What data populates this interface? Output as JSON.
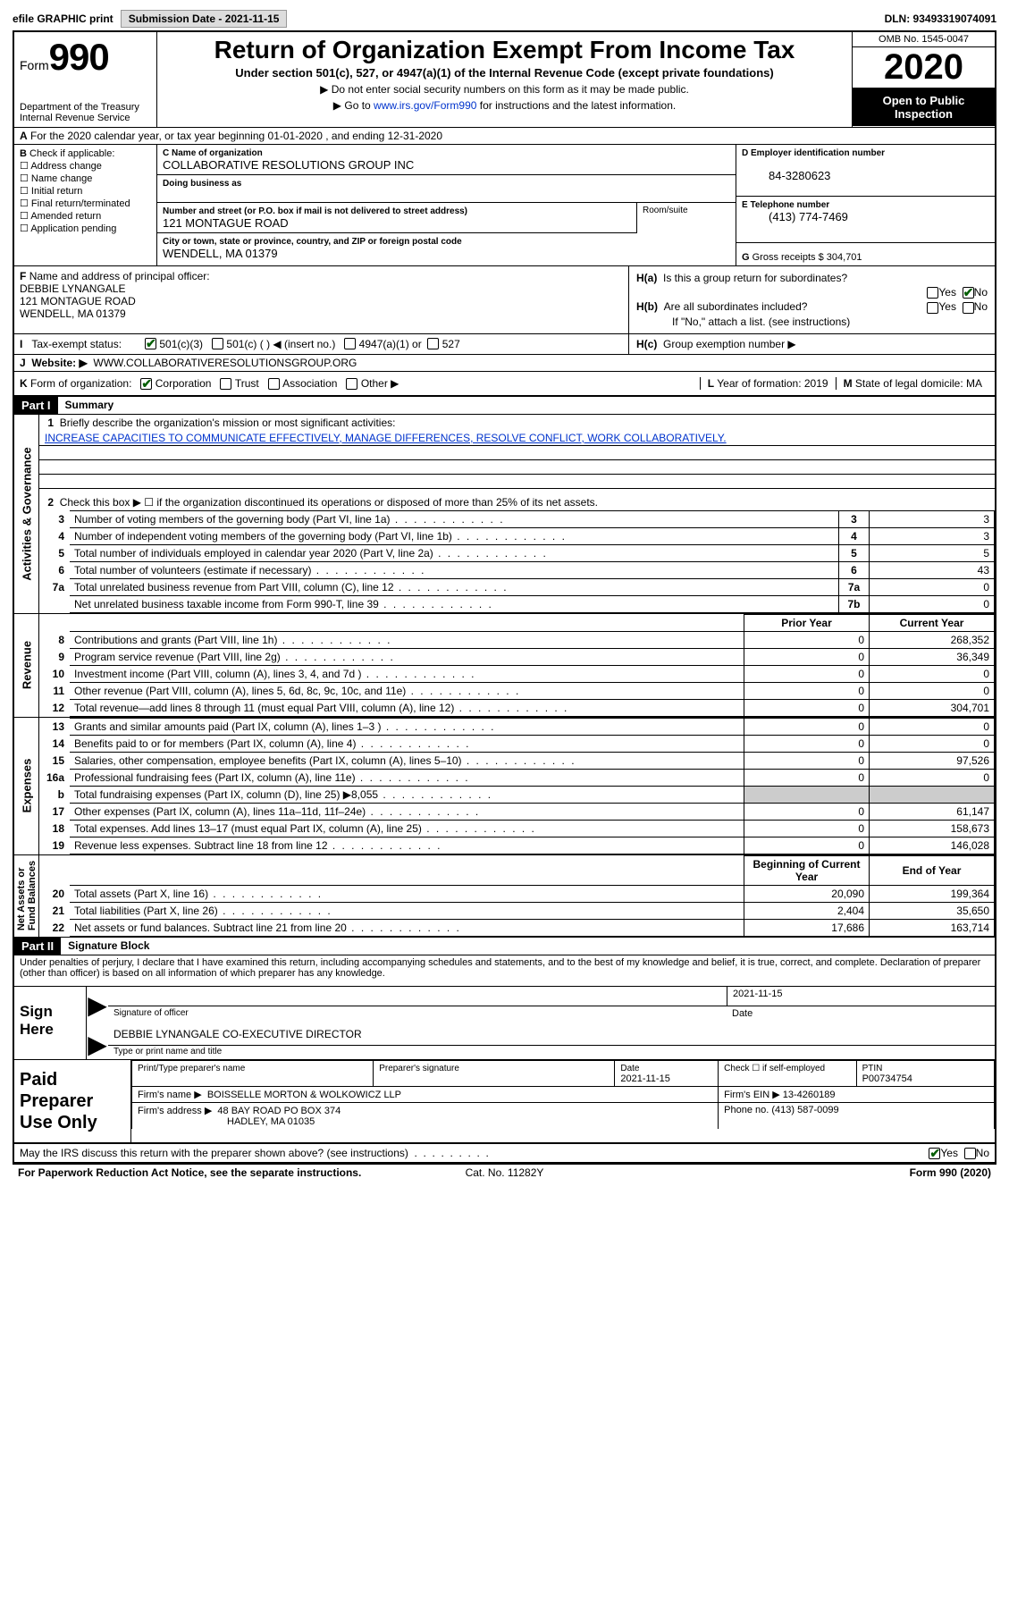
{
  "topbar": {
    "efile_label": "efile GRAPHIC print",
    "submission_label": "Submission Date - 2021-11-15",
    "dln": "DLN: 93493319074091"
  },
  "header": {
    "form_word": "Form",
    "form_num": "990",
    "dept": "Department of the Treasury",
    "irs": "Internal Revenue Service",
    "title": "Return of Organization Exempt From Income Tax",
    "subtitle": "Under section 501(c), 527, or 4947(a)(1) of the Internal Revenue Code (except private foundations)",
    "note1": "Do not enter social security numbers on this form as it may be made public.",
    "note2_pre": "Go to ",
    "note2_link": "www.irs.gov/Form990",
    "note2_post": " for instructions and the latest information.",
    "omb": "OMB No. 1545-0047",
    "year": "2020",
    "open": "Open to Public Inspection"
  },
  "rowA": "For the 2020 calendar year, or tax year beginning 01-01-2020    , and ending 12-31-2020",
  "B": {
    "label": "Check if applicable:",
    "items": [
      "Address change",
      "Name change",
      "Initial return",
      "Final return/terminated",
      "Amended return",
      "Application pending"
    ]
  },
  "C": {
    "name_lbl": "Name of organization",
    "name": "COLLABORATIVE RESOLUTIONS GROUP INC",
    "dba_lbl": "Doing business as",
    "dba": "",
    "street_lbl": "Number and street (or P.O. box if mail is not delivered to street address)",
    "street": "121 MONTAGUE ROAD",
    "suite_lbl": "Room/suite",
    "city_lbl": "City or town, state or province, country, and ZIP or foreign postal code",
    "city": "WENDELL, MA  01379"
  },
  "D": {
    "lbl": "Employer identification number",
    "val": "84-3280623"
  },
  "E": {
    "lbl": "Telephone number",
    "val": "(413) 774-7469"
  },
  "G": {
    "lbl": "Gross receipts $",
    "val": "304,701"
  },
  "F": {
    "lbl": "Name and address of principal officer:",
    "name": "DEBBIE LYNANGALE",
    "addr1": "121 MONTAGUE ROAD",
    "addr2": "WENDELL, MA  01379"
  },
  "H": {
    "a": "Is this a group return for subordinates?",
    "a_yes": false,
    "a_no": true,
    "b": "Are all subordinates included?",
    "b_note": "If \"No,\" attach a list. (see instructions)",
    "c": "Group exemption number ▶"
  },
  "I": {
    "lbl": "Tax-exempt status:",
    "opts": [
      "501(c)(3)",
      "501(c) (  ) ◀ (insert no.)",
      "4947(a)(1) or",
      "527"
    ]
  },
  "J": {
    "lbl": "Website: ▶",
    "val": "WWW.COLLABORATIVERESOLUTIONSGROUP.ORG"
  },
  "K": {
    "lbl": "Form of organization:",
    "opts": [
      "Corporation",
      "Trust",
      "Association",
      "Other ▶"
    ]
  },
  "L": {
    "lbl": "Year of formation:",
    "val": "2019"
  },
  "M": {
    "lbl": "State of legal domicile:",
    "val": "MA"
  },
  "part1": {
    "tag": "Part I",
    "title": "Summary",
    "q1": "Briefly describe the organization's mission or most significant activities:",
    "mission": "INCREASE CAPACITIES TO COMMUNICATE EFFECTIVELY, MANAGE DIFFERENCES, RESOLVE CONFLICT, WORK COLLABORATIVELY.",
    "q2": "Check this box ▶ ☐  if the organization discontinued its operations or disposed of more than 25% of its net assets.",
    "gov_rows": [
      {
        "n": "3",
        "d": "Number of voting members of the governing body (Part VI, line 1a)",
        "box": "3",
        "v": "3"
      },
      {
        "n": "4",
        "d": "Number of independent voting members of the governing body (Part VI, line 1b)",
        "box": "4",
        "v": "3"
      },
      {
        "n": "5",
        "d": "Total number of individuals employed in calendar year 2020 (Part V, line 2a)",
        "box": "5",
        "v": "5"
      },
      {
        "n": "6",
        "d": "Total number of volunteers (estimate if necessary)",
        "box": "6",
        "v": "43"
      },
      {
        "n": "7a",
        "d": "Total unrelated business revenue from Part VIII, column (C), line 12",
        "box": "7a",
        "v": "0"
      },
      {
        "n": "",
        "d": "Net unrelated business taxable income from Form 990-T, line 39",
        "box": "7b",
        "v": "0"
      }
    ],
    "col_prior": "Prior Year",
    "col_curr": "Current Year",
    "rev_rows": [
      {
        "n": "8",
        "d": "Contributions and grants (Part VIII, line 1h)",
        "p": "0",
        "c": "268,352"
      },
      {
        "n": "9",
        "d": "Program service revenue (Part VIII, line 2g)",
        "p": "0",
        "c": "36,349"
      },
      {
        "n": "10",
        "d": "Investment income (Part VIII, column (A), lines 3, 4, and 7d )",
        "p": "0",
        "c": "0"
      },
      {
        "n": "11",
        "d": "Other revenue (Part VIII, column (A), lines 5, 6d, 8c, 9c, 10c, and 11e)",
        "p": "0",
        "c": "0"
      },
      {
        "n": "12",
        "d": "Total revenue—add lines 8 through 11 (must equal Part VIII, column (A), line 12)",
        "p": "0",
        "c": "304,701"
      }
    ],
    "exp_rows": [
      {
        "n": "13",
        "d": "Grants and similar amounts paid (Part IX, column (A), lines 1–3 )",
        "p": "0",
        "c": "0"
      },
      {
        "n": "14",
        "d": "Benefits paid to or for members (Part IX, column (A), line 4)",
        "p": "0",
        "c": "0"
      },
      {
        "n": "15",
        "d": "Salaries, other compensation, employee benefits (Part IX, column (A), lines 5–10)",
        "p": "0",
        "c": "97,526"
      },
      {
        "n": "16a",
        "d": "Professional fundraising fees (Part IX, column (A), line 11e)",
        "p": "0",
        "c": "0"
      },
      {
        "n": "b",
        "d": "Total fundraising expenses (Part IX, column (D), line 25) ▶8,055",
        "p": "grey",
        "c": "grey"
      },
      {
        "n": "17",
        "d": "Other expenses (Part IX, column (A), lines 11a–11d, 11f–24e)",
        "p": "0",
        "c": "61,147"
      },
      {
        "n": "18",
        "d": "Total expenses. Add lines 13–17 (must equal Part IX, column (A), line 25)",
        "p": "0",
        "c": "158,673"
      },
      {
        "n": "19",
        "d": "Revenue less expenses. Subtract line 18 from line 12",
        "p": "0",
        "c": "146,028"
      }
    ],
    "col_begin": "Beginning of Current Year",
    "col_end": "End of Year",
    "net_rows": [
      {
        "n": "20",
        "d": "Total assets (Part X, line 16)",
        "p": "20,090",
        "c": "199,364"
      },
      {
        "n": "21",
        "d": "Total liabilities (Part X, line 26)",
        "p": "2,404",
        "c": "35,650"
      },
      {
        "n": "22",
        "d": "Net assets or fund balances. Subtract line 21 from line 20",
        "p": "17,686",
        "c": "163,714"
      }
    ]
  },
  "part2": {
    "tag": "Part II",
    "title": "Signature Block",
    "perjury": "Under penalties of perjury, I declare that I have examined this return, including accompanying schedules and statements, and to the best of my knowledge and belief, it is true, correct, and complete. Declaration of preparer (other than officer) is based on all information of which preparer has any knowledge."
  },
  "sign": {
    "left": "Sign Here",
    "sig_lbl": "Signature of officer",
    "date_lbl": "Date",
    "date": "2021-11-15",
    "name": "DEBBIE LYNANGALE  CO-EXECUTIVE DIRECTOR",
    "name_lbl": "Type or print name and title"
  },
  "prep": {
    "left": "Paid Preparer Use Only",
    "h1": "Print/Type preparer's name",
    "h2": "Preparer's signature",
    "h3": "Date",
    "h3v": "2021-11-15",
    "h4": "Check ☐ if self-employed",
    "h5": "PTIN",
    "h5v": "P00734754",
    "firm_lbl": "Firm's name    ▶",
    "firm": "BOISSELLE MORTON & WOLKOWICZ LLP",
    "ein_lbl": "Firm's EIN ▶",
    "ein": "13-4260189",
    "addr_lbl": "Firm's address ▶",
    "addr1": "48 BAY ROAD PO BOX 374",
    "addr2": "HADLEY, MA  01035",
    "phone_lbl": "Phone no.",
    "phone": "(413) 587-0099"
  },
  "footer": {
    "discuss": "May the IRS discuss this return with the preparer shown above? (see instructions)",
    "paperwork": "For Paperwork Reduction Act Notice, see the separate instructions.",
    "cat": "Cat. No. 11282Y",
    "form": "Form 990 (2020)"
  }
}
